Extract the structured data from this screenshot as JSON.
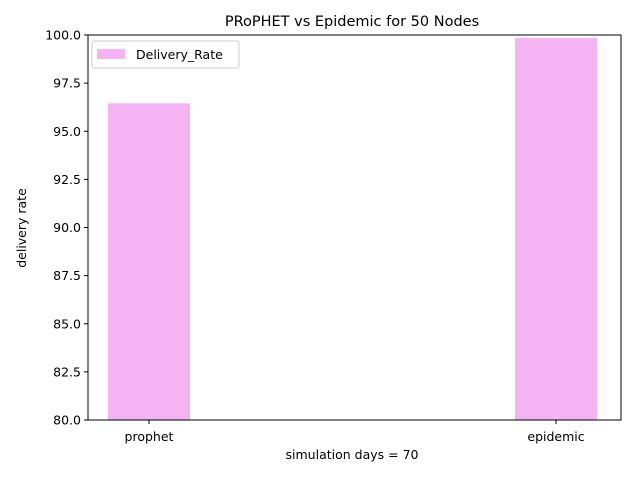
{
  "chart_data": {
    "type": "bar",
    "title": "PRoPHET vs Epidemic for 50 Nodes",
    "xlabel": "simulation days = 70",
    "ylabel": "delivery rate",
    "categories": [
      "prophet",
      "epidemic"
    ],
    "series": [
      {
        "name": "Delivery_Rate",
        "values": [
          96.45,
          99.85
        ],
        "color": "#f4b4f4"
      }
    ],
    "ylim": [
      80.0,
      100.0
    ],
    "yticks": [
      "80.0",
      "82.5",
      "85.0",
      "87.5",
      "90.0",
      "92.5",
      "95.0",
      "97.5",
      "100.0"
    ],
    "grid": false,
    "legend": "top-left"
  }
}
